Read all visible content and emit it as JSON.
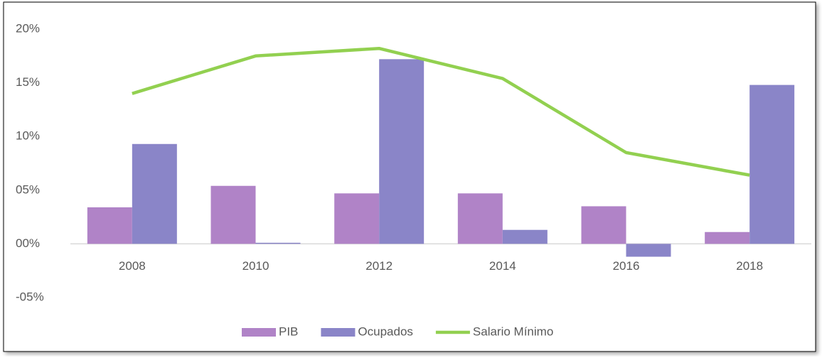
{
  "chart_data": {
    "type": "bar_line",
    "categories": [
      "2008",
      "2010",
      "2012",
      "2014",
      "2016",
      "2018"
    ],
    "series": [
      {
        "name": "PIB",
        "type": "bar",
        "color": "#b083c7",
        "values": [
          3.4,
          5.4,
          4.7,
          4.7,
          3.5,
          1.1
        ]
      },
      {
        "name": "Ocupados",
        "type": "bar",
        "color": "#8a85c8",
        "values": [
          9.3,
          0.1,
          17.2,
          1.3,
          -1.2,
          14.8
        ]
      },
      {
        "name": "Salario Mínimo",
        "type": "line",
        "color": "#92d050",
        "values": [
          14.0,
          17.5,
          18.2,
          15.4,
          8.5,
          6.4
        ]
      }
    ],
    "ylim": [
      -5,
      20
    ],
    "yticks": [
      {
        "value": -5,
        "label": "-05%"
      },
      {
        "value": 0,
        "label": "00%"
      },
      {
        "value": 5,
        "label": "05%"
      },
      {
        "value": 10,
        "label": "10%"
      },
      {
        "value": 15,
        "label": "15%"
      },
      {
        "value": 20,
        "label": "20%"
      }
    ],
    "grid": false,
    "legend": "bottom"
  }
}
